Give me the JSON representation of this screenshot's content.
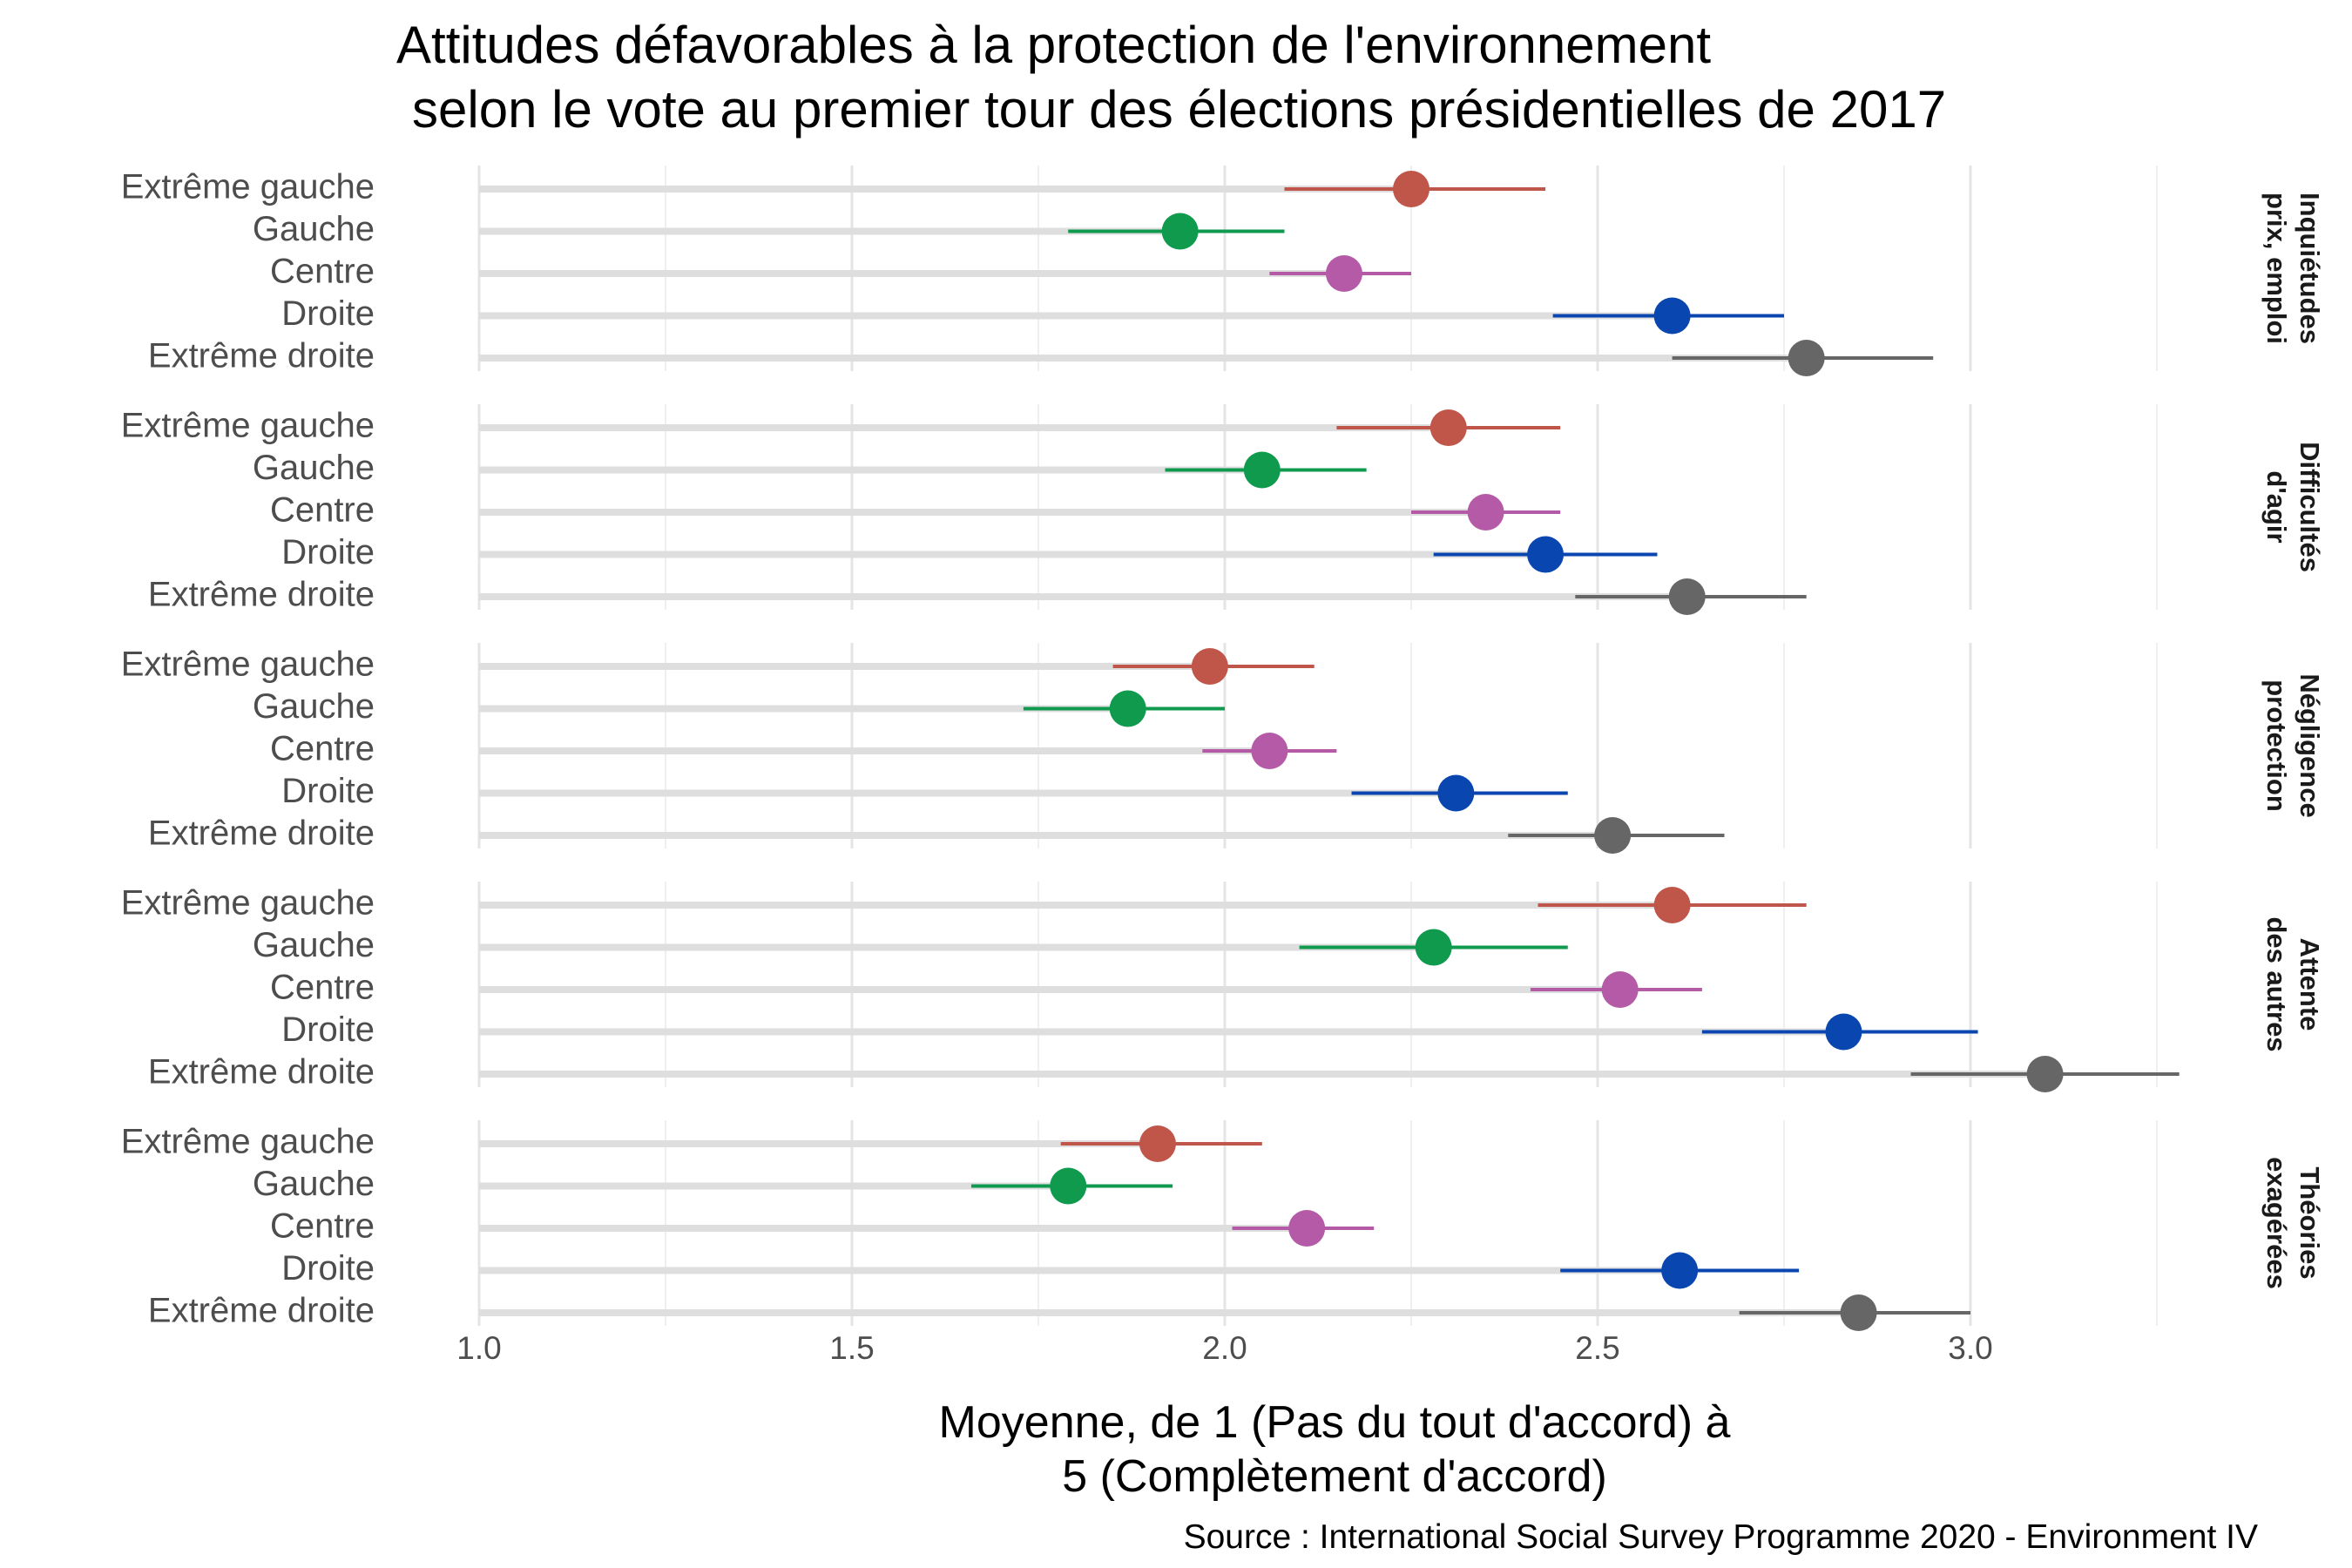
{
  "chart_data": {
    "type": "dot-errorbar",
    "title_lines": [
      "Attitudes défavorables à la protection de l'environnement",
      "selon le vote au premier tour des élections présidentielles de 2017"
    ],
    "xlabel_lines": [
      "Moyenne, de 1 (Pas du tout d'accord) à",
      "5 (Complètement d'accord)"
    ],
    "caption": "Source : International Social Survey Programme 2020 - Environment IV",
    "xlim": [
      1.0,
      3.3
    ],
    "x_ticks": [
      1.0,
      1.5,
      2.0,
      2.5,
      3.0
    ],
    "x_tick_labels": [
      "1.0",
      "1.5",
      "2.0",
      "2.5",
      "3.0"
    ],
    "x_minor_ticks": [
      1.25,
      1.75,
      2.25,
      2.75,
      3.25
    ],
    "categories": [
      "Extrême gauche",
      "Gauche",
      "Centre",
      "Droite",
      "Extrême droite"
    ],
    "colors": {
      "Extrême gauche": "#c0564a",
      "Gauche": "#0f9a4e",
      "Centre": "#b45aa6",
      "Droite": "#0a46b0",
      "Extrême droite": "#666666"
    },
    "grid": true,
    "facets": [
      {
        "label_lines": [
          "Inquiétudes",
          "prix, emploi"
        ],
        "points": [
          {
            "category": "Extrême gauche",
            "mean": 2.25,
            "lo": 2.08,
            "hi": 2.43
          },
          {
            "category": "Gauche",
            "mean": 1.94,
            "lo": 1.79,
            "hi": 2.08
          },
          {
            "category": "Centre",
            "mean": 2.16,
            "lo": 2.06,
            "hi": 2.25
          },
          {
            "category": "Droite",
            "mean": 2.6,
            "lo": 2.44,
            "hi": 2.75
          },
          {
            "category": "Extrême droite",
            "mean": 2.78,
            "lo": 2.6,
            "hi": 2.95
          }
        ]
      },
      {
        "label_lines": [
          "Difficultés",
          "d'agir"
        ],
        "points": [
          {
            "category": "Extrême gauche",
            "mean": 2.3,
            "lo": 2.15,
            "hi": 2.45
          },
          {
            "category": "Gauche",
            "mean": 2.05,
            "lo": 1.92,
            "hi": 2.19
          },
          {
            "category": "Centre",
            "mean": 2.35,
            "lo": 2.25,
            "hi": 2.45
          },
          {
            "category": "Droite",
            "mean": 2.43,
            "lo": 2.28,
            "hi": 2.58
          },
          {
            "category": "Extrême droite",
            "mean": 2.62,
            "lo": 2.47,
            "hi": 2.78
          }
        ]
      },
      {
        "label_lines": [
          "Négligence",
          "protection"
        ],
        "points": [
          {
            "category": "Extrême gauche",
            "mean": 1.98,
            "lo": 1.85,
            "hi": 2.12
          },
          {
            "category": "Gauche",
            "mean": 1.87,
            "lo": 1.73,
            "hi": 2.0
          },
          {
            "category": "Centre",
            "mean": 2.06,
            "lo": 1.97,
            "hi": 2.15
          },
          {
            "category": "Droite",
            "mean": 2.31,
            "lo": 2.17,
            "hi": 2.46
          },
          {
            "category": "Extrême droite",
            "mean": 2.52,
            "lo": 2.38,
            "hi": 2.67
          }
        ]
      },
      {
        "label_lines": [
          "Attente",
          "des autres"
        ],
        "points": [
          {
            "category": "Extrême gauche",
            "mean": 2.6,
            "lo": 2.42,
            "hi": 2.78
          },
          {
            "category": "Gauche",
            "mean": 2.28,
            "lo": 2.1,
            "hi": 2.46
          },
          {
            "category": "Centre",
            "mean": 2.53,
            "lo": 2.41,
            "hi": 2.64
          },
          {
            "category": "Droite",
            "mean": 2.83,
            "lo": 2.64,
            "hi": 3.01
          },
          {
            "category": "Extrême droite",
            "mean": 3.1,
            "lo": 2.92,
            "hi": 3.28
          }
        ]
      },
      {
        "label_lines": [
          "Théories",
          "exagérées"
        ],
        "points": [
          {
            "category": "Extrême gauche",
            "mean": 1.91,
            "lo": 1.78,
            "hi": 2.05
          },
          {
            "category": "Gauche",
            "mean": 1.79,
            "lo": 1.66,
            "hi": 1.93
          },
          {
            "category": "Centre",
            "mean": 2.11,
            "lo": 2.01,
            "hi": 2.2
          },
          {
            "category": "Droite",
            "mean": 2.61,
            "lo": 2.45,
            "hi": 2.77
          },
          {
            "category": "Extrême droite",
            "mean": 2.85,
            "lo": 2.69,
            "hi": 3.0
          }
        ]
      }
    ]
  }
}
